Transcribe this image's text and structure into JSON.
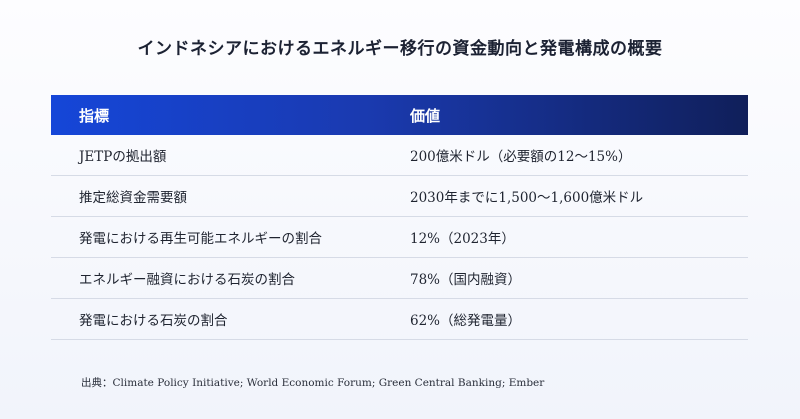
{
  "title": "インドネシアにおけるエネルギー移行の資金動向と発電構成の概要",
  "table": {
    "headers": [
      "指標",
      "価値"
    ],
    "rows": [
      {
        "indicator": "JETPの拠出額",
        "value": "200億米ドル（必要額の12〜15%）"
      },
      {
        "indicator": "推定総資金需要額",
        "value": "2030年までに1,500〜1,600億米ドル"
      },
      {
        "indicator": "発電における再生可能エネルギーの割合",
        "value": "12%（2023年）"
      },
      {
        "indicator": "エネルギー融資における石炭の割合",
        "value": "78%（国内融資）"
      },
      {
        "indicator": "発電における石炭の割合",
        "value": "62%（総発電量）"
      }
    ]
  },
  "source": "出典：Climate Policy Initiative; World Economic Forum; Green Central Banking; Ember",
  "colors": {
    "header_gradient_start": "#1546d8",
    "header_gradient_end": "#101f5a",
    "background": "#f1f4fb",
    "row_divider": "#d6dbe6"
  }
}
